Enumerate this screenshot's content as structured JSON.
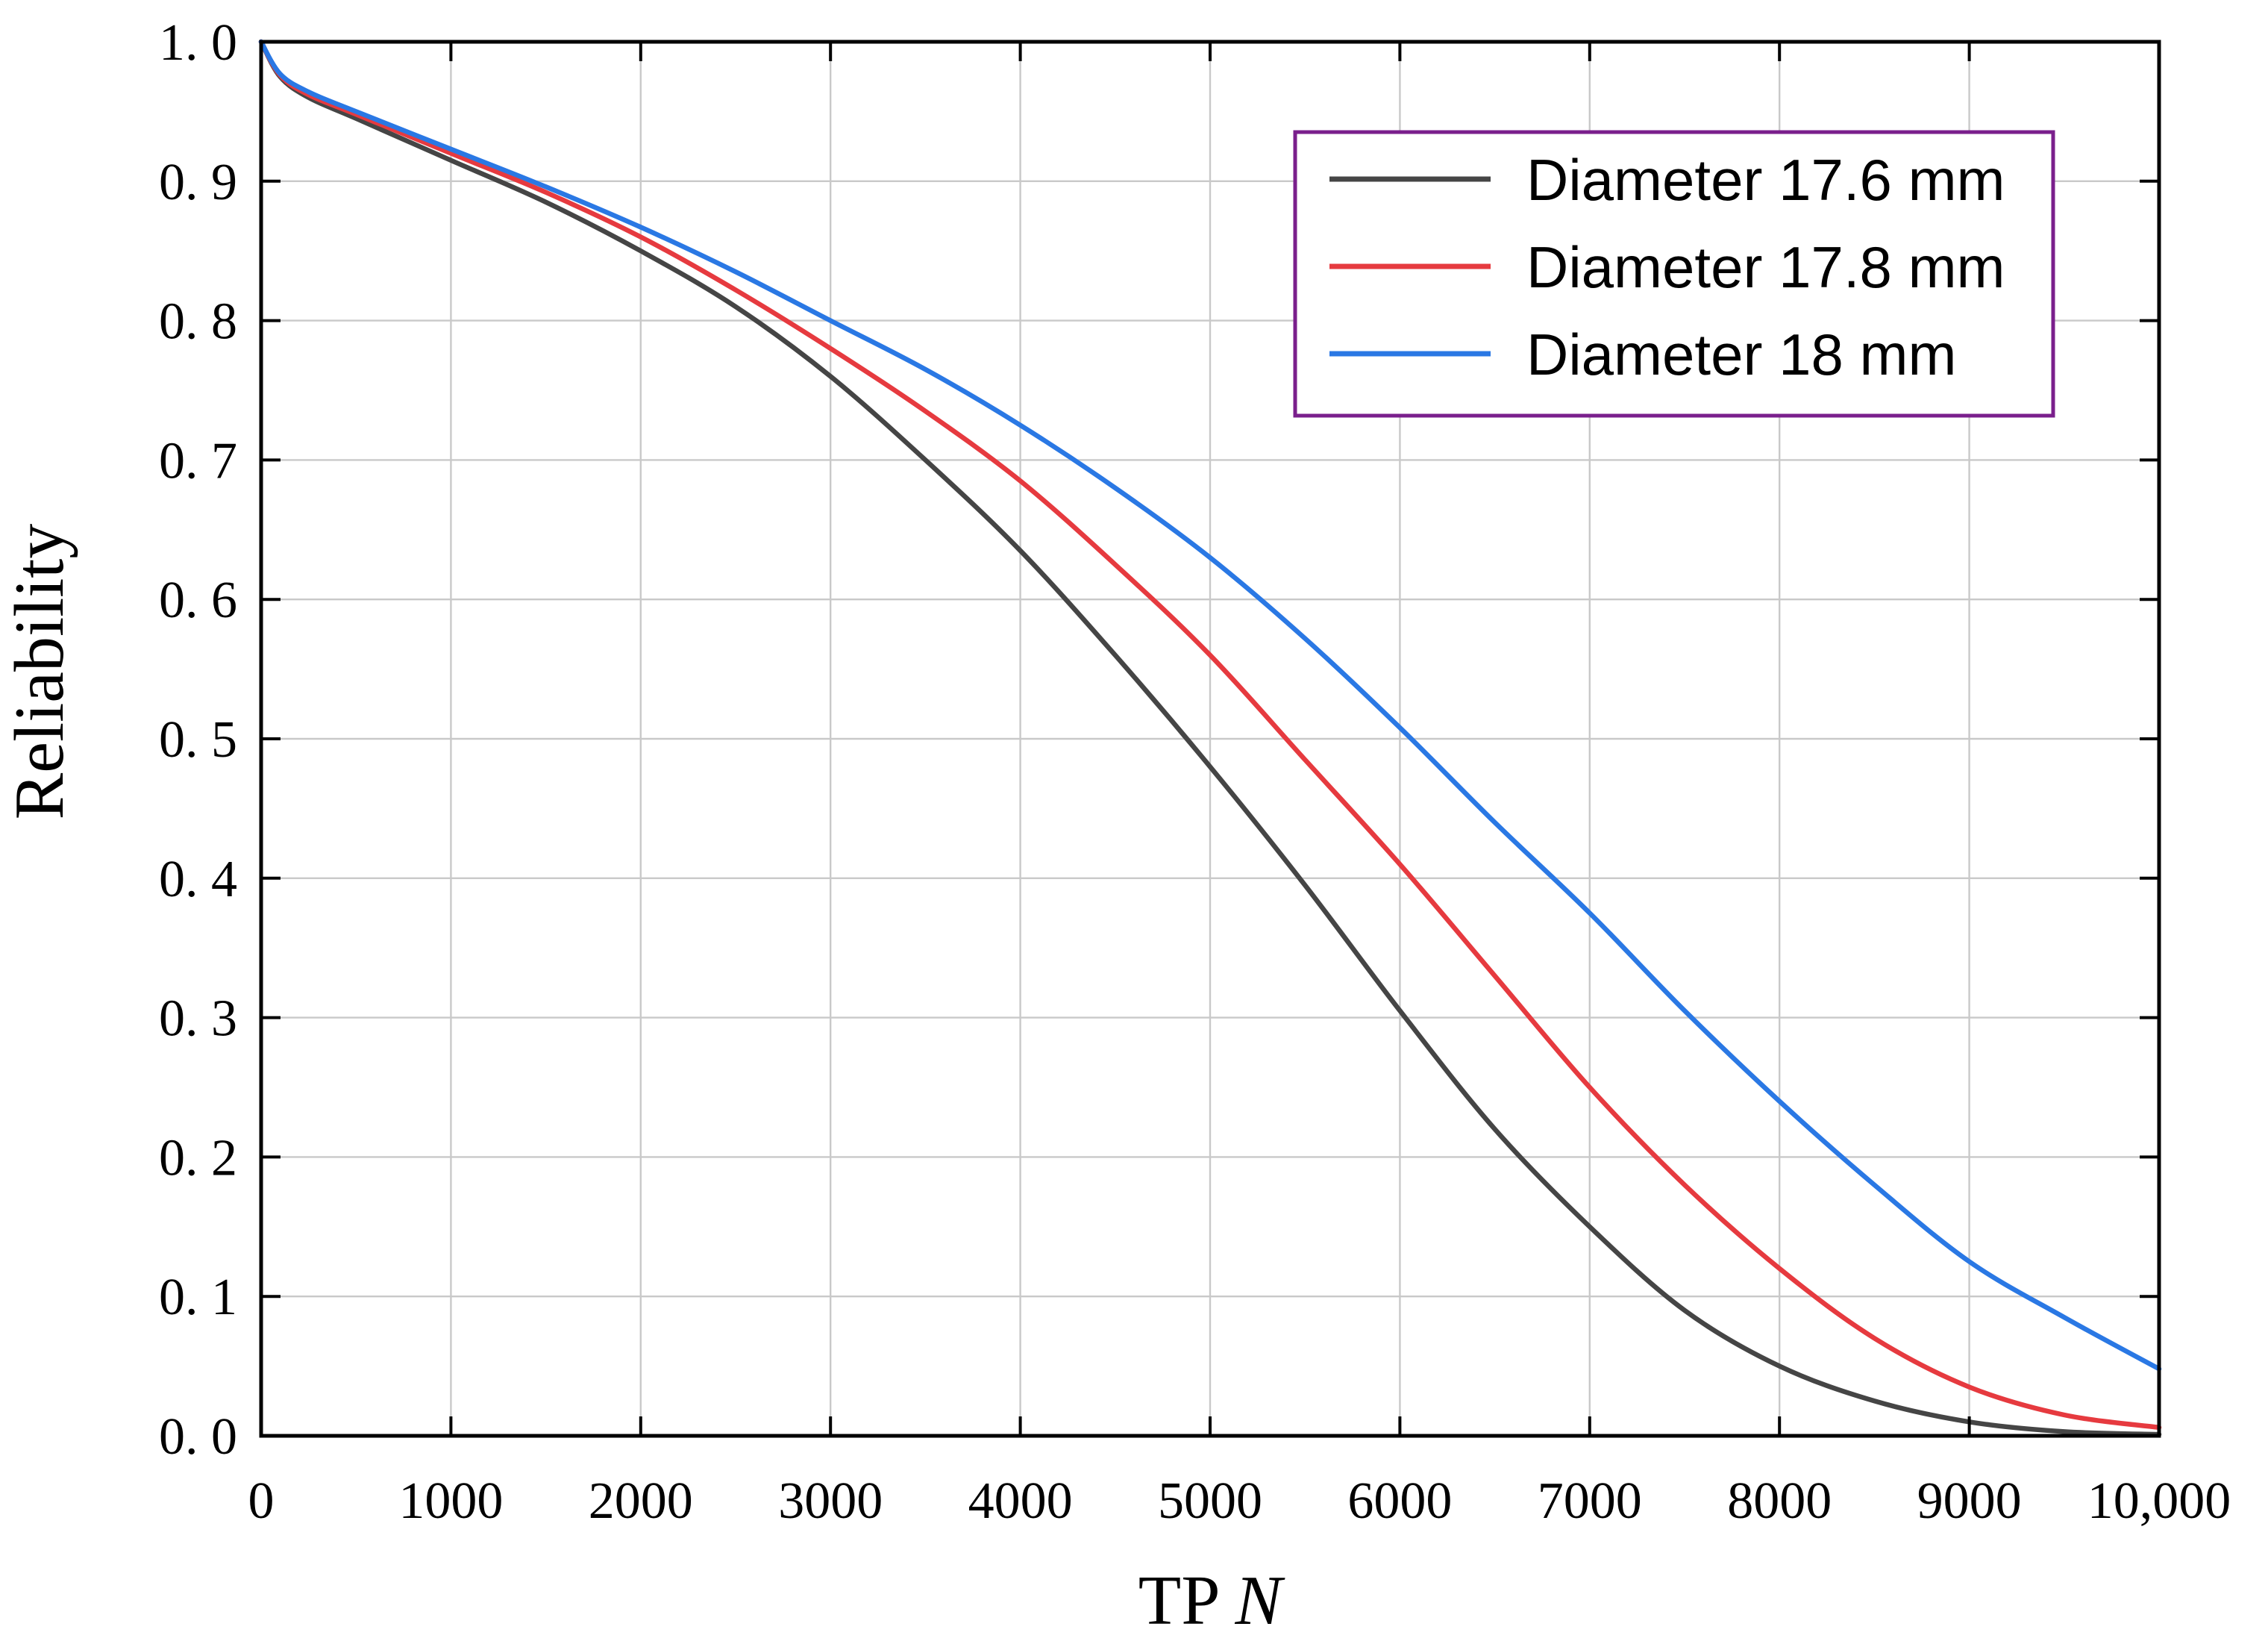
{
  "chart_data": {
    "type": "line",
    "title": "",
    "xlabel_main": "TP ",
    "xlabel_italic": "N",
    "ylabel": "Reliability",
    "xlim": [
      0,
      10000
    ],
    "ylim": [
      0,
      1
    ],
    "grid": true,
    "legend_position": "top-right",
    "x_ticks": [
      0,
      1000,
      2000,
      3000,
      4000,
      5000,
      6000,
      7000,
      8000,
      9000,
      10000
    ],
    "x_tick_labels": [
      "0",
      "1000",
      "2000",
      "3000",
      "4000",
      "5000",
      "6000",
      "7000",
      "8000",
      "9000",
      "10,000"
    ],
    "y_ticks": [
      0,
      0.1,
      0.2,
      0.3,
      0.4,
      0.5,
      0.6,
      0.7,
      0.8,
      0.9,
      1.0
    ],
    "y_tick_labels": [
      "0. 0",
      "0. 1",
      "0. 2",
      "0. 3",
      "0. 4",
      "0. 5",
      "0. 6",
      "0. 7",
      "0. 8",
      "0. 9",
      "1. 0"
    ],
    "colors": {
      "axis": "#000000",
      "legend_border": "#7a1f8c"
    },
    "series": [
      {
        "name": "Diameter 17.6 mm",
        "color": "#454545",
        "x": [
          0,
          100,
          250,
          500,
          1000,
          1500,
          2000,
          2500,
          3000,
          3500,
          4000,
          4500,
          5000,
          5500,
          6000,
          6500,
          7000,
          7500,
          8000,
          8500,
          9000,
          9500,
          10000
        ],
        "y": [
          1.0,
          0.975,
          0.96,
          0.945,
          0.915,
          0.885,
          0.85,
          0.81,
          0.76,
          0.7,
          0.635,
          0.56,
          0.48,
          0.395,
          0.305,
          0.22,
          0.15,
          0.09,
          0.05,
          0.025,
          0.01,
          0.003,
          0.001
        ]
      },
      {
        "name": "Diameter 17.8 mm",
        "color": "#e63a3f",
        "x": [
          0,
          100,
          250,
          500,
          1000,
          1500,
          2000,
          2500,
          3000,
          3500,
          4000,
          4500,
          5000,
          5500,
          6000,
          6500,
          7000,
          7500,
          8000,
          8500,
          9000,
          9500,
          10000
        ],
        "y": [
          1.0,
          0.976,
          0.962,
          0.948,
          0.92,
          0.892,
          0.86,
          0.822,
          0.78,
          0.735,
          0.685,
          0.625,
          0.56,
          0.485,
          0.41,
          0.33,
          0.25,
          0.18,
          0.12,
          0.07,
          0.035,
          0.015,
          0.006
        ]
      },
      {
        "name": "Diameter 18 mm",
        "color": "#2a78e4",
        "x": [
          0,
          100,
          250,
          500,
          1000,
          1500,
          2000,
          2500,
          3000,
          3500,
          4000,
          4500,
          5000,
          5500,
          6000,
          6500,
          7000,
          7500,
          8000,
          8500,
          9000,
          9500,
          10000
        ],
        "y": [
          1.0,
          0.977,
          0.964,
          0.95,
          0.923,
          0.896,
          0.867,
          0.835,
          0.8,
          0.765,
          0.725,
          0.68,
          0.63,
          0.572,
          0.508,
          0.44,
          0.375,
          0.305,
          0.24,
          0.18,
          0.125,
          0.085,
          0.048
        ]
      }
    ]
  }
}
